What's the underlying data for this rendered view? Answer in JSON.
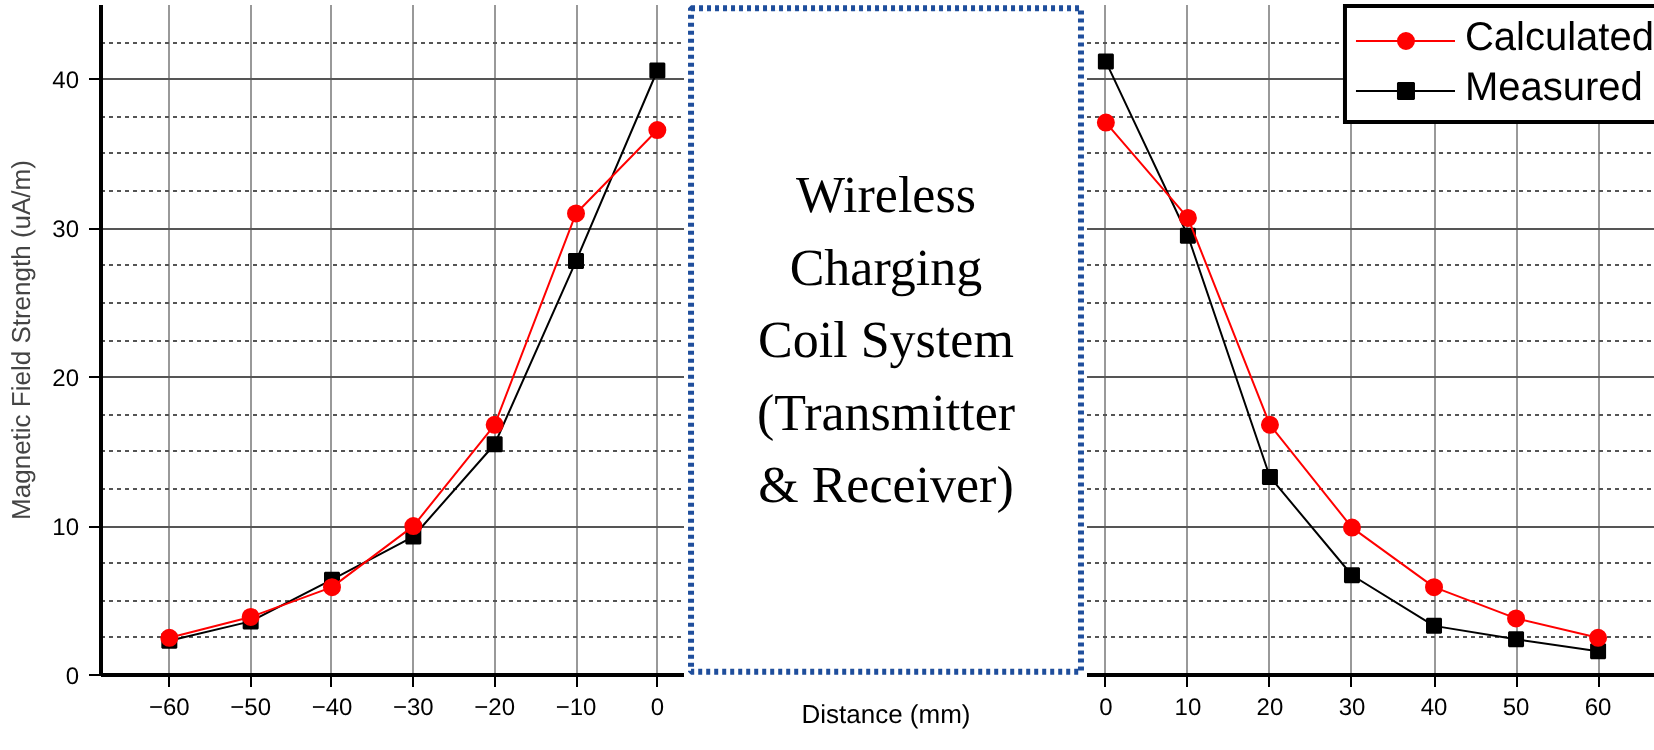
{
  "chart_data": [
    {
      "type": "line",
      "ylabel": "Magnetic Field Strength (uA/m)",
      "x": [
        -60,
        -50,
        -40,
        -30,
        -20,
        -10,
        0
      ],
      "xlim": [
        -68.4,
        3.4
      ],
      "xticks": [
        -60,
        -50,
        -40,
        -30,
        -20,
        -10,
        0
      ],
      "ylim": [
        0,
        45
      ],
      "yticks": [
        0,
        10,
        20,
        30,
        40
      ],
      "grid": true,
      "legend": false,
      "series": [
        {
          "color": "#ff0000",
          "marker": "circle",
          "values": [
            2.5,
            3.9,
            5.9,
            10.0,
            16.8,
            31.0,
            36.6
          ]
        },
        {
          "color": "#000000",
          "marker": "square",
          "values": [
            2.3,
            3.6,
            6.4,
            9.3,
            15.5,
            27.8,
            40.6
          ]
        }
      ]
    },
    {
      "type": "other",
      "xlabel": "Distance (mm)",
      "annotations": [
        "Wireless\nCharging\nCoil System\n(Transmitter\n& Receiver)"
      ]
    },
    {
      "type": "line",
      "x": [
        0,
        10,
        20,
        30,
        40,
        50,
        60
      ],
      "xlim": [
        -2.3,
        68.4
      ],
      "xticks": [
        0,
        10,
        20,
        30,
        40,
        50,
        60
      ],
      "ylim": [
        0,
        45
      ],
      "yticks": [
        0,
        10,
        20,
        30,
        40
      ],
      "grid": true,
      "legend": "top right",
      "tick_labels": "x",
      "series": [
        {
          "name": "Calculated",
          "color": "#ff0000",
          "marker": "circle",
          "values": [
            37.1,
            30.7,
            16.8,
            9.9,
            5.9,
            3.8,
            2.5
          ]
        },
        {
          "name": "Measured",
          "color": "#000000",
          "marker": "square",
          "values": [
            41.2,
            29.5,
            13.3,
            6.7,
            3.3,
            2.4,
            1.6
          ]
        }
      ]
    }
  ]
}
